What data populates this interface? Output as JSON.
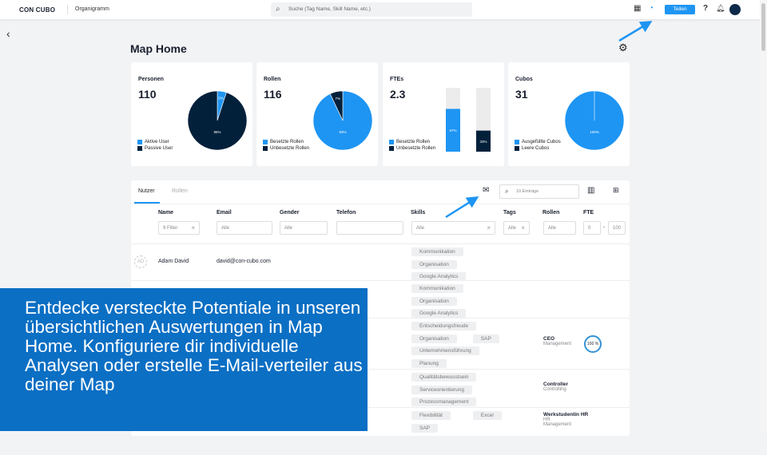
{
  "header": {
    "logo": "CON CUBO",
    "section": "Organigramm",
    "search_placeholder": "Suche (Tag Name, Skill Name, etc.)",
    "share_label": "Teilen",
    "help": "?"
  },
  "page": {
    "title": "Map Home"
  },
  "cards": [
    {
      "title": "Personen",
      "value": "110",
      "type": "pie",
      "slices": [
        {
          "label": "Aktive User",
          "percent": 5,
          "color": "#1e95f3"
        },
        {
          "label": "Passive User",
          "percent": 95,
          "color": "#03203b"
        }
      ]
    },
    {
      "title": "Rollen",
      "value": "116",
      "type": "pie",
      "slices": [
        {
          "label": "Besetzte Rollen",
          "percent": 93,
          "color": "#1e95f3"
        },
        {
          "label": "Unbesetzte Rollen",
          "percent": 7,
          "color": "#03203b"
        }
      ]
    },
    {
      "title": "FTEs",
      "value": "2.3",
      "type": "bars",
      "slices": [
        {
          "label": "Besetzte Rollen",
          "percent": 67,
          "color": "#1e95f3"
        },
        {
          "label": "Unbesetzte Rollen",
          "percent": 33,
          "color": "#03203b"
        }
      ]
    },
    {
      "title": "Cubos",
      "value": "31",
      "type": "pie",
      "slices": [
        {
          "label": "Ausgefüllte Cubos",
          "percent": 100,
          "color": "#1e95f3"
        },
        {
          "label": "Leere Cubos",
          "percent": 0,
          "color": "#03203b"
        }
      ]
    }
  ],
  "table": {
    "tabs": [
      "Nutzer",
      "Rollen"
    ],
    "entries_placeholder": "10 Einträge",
    "columns": [
      "Name",
      "Email",
      "Gender",
      "Telefon",
      "Skills",
      "Tags",
      "Rollen",
      "FTE"
    ],
    "filters": {
      "name": "9 Filter",
      "email": "Alle",
      "gender": "Alle",
      "telefon": "",
      "skills": "Alle",
      "tags": "Alle",
      "rollen": "Alle",
      "fte_min": "0",
      "fte_dash": "-",
      "fte_max": "100"
    },
    "rows": [
      {
        "initials": "AD",
        "name": "Adam David",
        "email": "david@con-cubo.com",
        "skills": [
          [
            "Kommunikation"
          ],
          [
            "Organisation"
          ],
          [
            "Google Analytics"
          ]
        ]
      },
      {
        "skills": [
          [
            "Kommunikation"
          ],
          [
            "Organisation"
          ],
          [
            "Google Analytics"
          ]
        ]
      },
      {
        "skills": [
          [
            "Entscheidungsfreude"
          ],
          [
            "Organisation",
            "SAP"
          ],
          [
            "Unternehmensführung"
          ],
          [
            "Planung"
          ]
        ],
        "role": "CEO",
        "dept": "Management",
        "fte": "100 %"
      },
      {
        "skills": [
          [
            "Qualitätsbewusstsein"
          ],
          [
            "Serviceorientierung"
          ],
          [
            "Prozessmanagement"
          ]
        ],
        "role": "Controller",
        "dept": "Controlling"
      },
      {
        "skills": [
          [
            "Flexibilität",
            "Excel"
          ],
          [
            "SAP"
          ]
        ],
        "role": "Werkstudentin HR",
        "dept": "HR",
        "dept2": "Management"
      }
    ]
  },
  "overlay": {
    "text": "Entdecke versteckte Potentiale in unseren übersichtlichen Auswertungen in Map Home. Konfiguriere dir individuelle Analysen oder erstelle E-Mail-verteiler aus deiner Map"
  }
}
